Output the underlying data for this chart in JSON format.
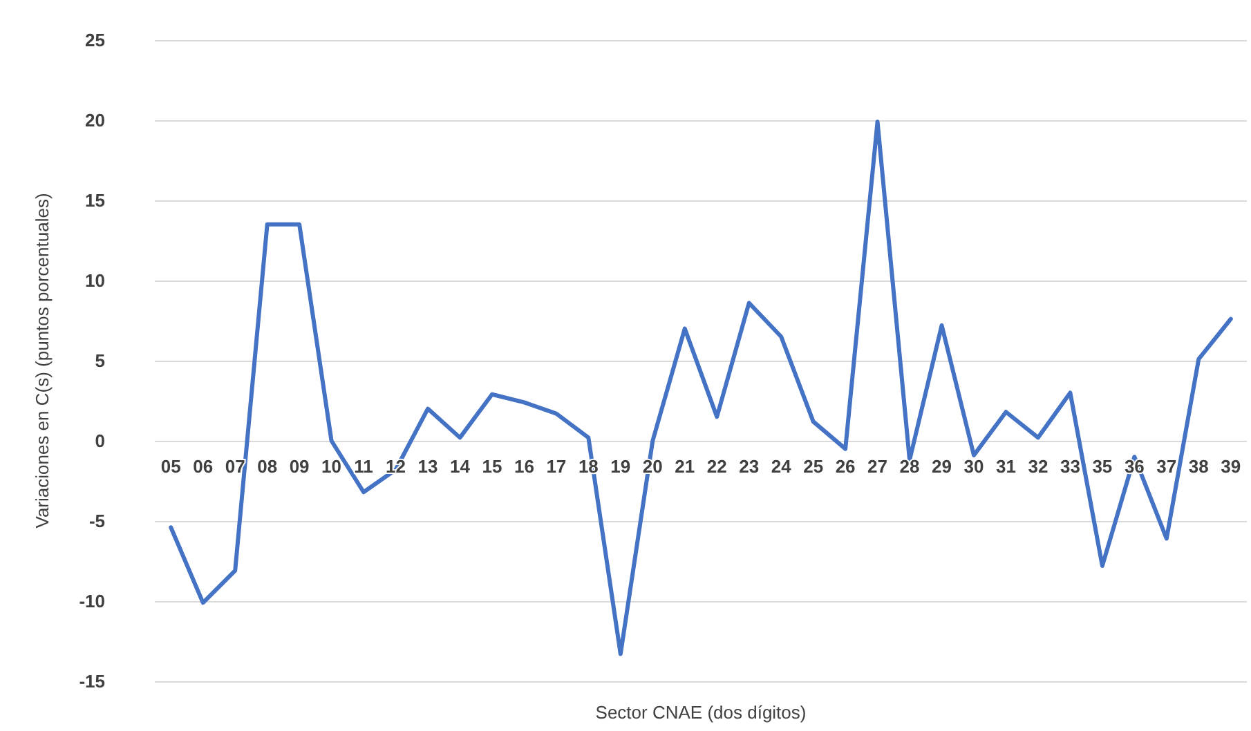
{
  "chart_data": {
    "type": "line",
    "xlabel": "Sector CNAE (dos dígitos)",
    "ylabel": "Variaciones en C(s) (puntos porcentuales)",
    "categories": [
      "05",
      "06",
      "07",
      "08",
      "09",
      "10",
      "11",
      "12",
      "13",
      "14",
      "15",
      "16",
      "17",
      "18",
      "19",
      "20",
      "21",
      "22",
      "23",
      "24",
      "25",
      "26",
      "27",
      "28",
      "29",
      "30",
      "31",
      "32",
      "33",
      "35",
      "36",
      "37",
      "38",
      "39"
    ],
    "series": [
      {
        "color": "#4472c4",
        "values": [
          -5.4,
          -10.1,
          -8.1,
          13.5,
          13.5,
          0,
          -3.2,
          -1.8,
          2.0,
          0.2,
          2.9,
          2.4,
          1.7,
          0.2,
          -13.3,
          0,
          7.0,
          1.5,
          8.6,
          6.5,
          1.2,
          -0.5,
          19.9,
          -1.2,
          7.2,
          -0.9,
          1.8,
          0.2,
          3.0,
          -7.8,
          -1.0,
          -6.1,
          5.1,
          7.6
        ]
      }
    ],
    "ylim": [
      -15,
      25
    ],
    "yticks": [
      -15,
      -10,
      -5,
      0,
      5,
      10,
      15,
      20,
      25
    ],
    "grid": "y",
    "marker": "none",
    "line_style": "solid"
  }
}
